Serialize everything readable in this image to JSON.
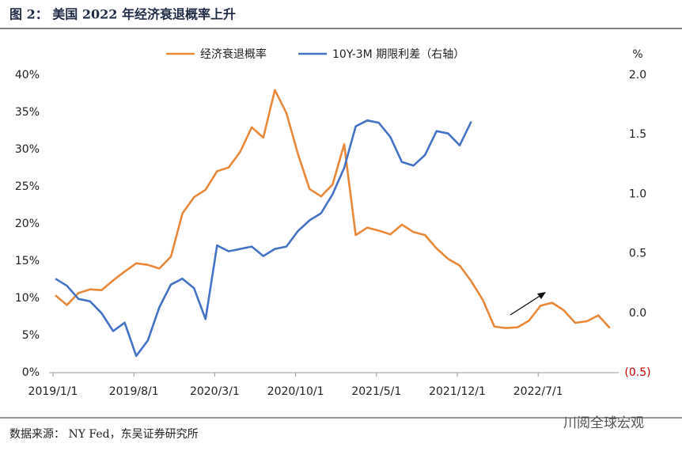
{
  "chart_data": {
    "type": "line",
    "title": "图 2：  美国 2022 年经济衰退概率上升",
    "source": "数据来源：  NY Fed，东吴证券研究所",
    "watermark": "川阅全球宏观",
    "categories": [
      "2019/1/1",
      null,
      null,
      null,
      null,
      null,
      null,
      "2019/8/1",
      null,
      null,
      null,
      null,
      null,
      null,
      "2020/3/1",
      null,
      null,
      null,
      null,
      null,
      null,
      "2020/10/1",
      null,
      null,
      null,
      null,
      null,
      null,
      "2021/5/1",
      null,
      null,
      null,
      null,
      null,
      null,
      "2021/12/1",
      null,
      null,
      null,
      null,
      null,
      null,
      "2022/7/1",
      null,
      null,
      null,
      null,
      null,
      null
    ],
    "series": [
      {
        "name": "经济衰退概率",
        "color": "#e8883a",
        "values": [
          10.4,
          9.1,
          10.7,
          11.2,
          11.1,
          12.4,
          13.6,
          14.7,
          14.5,
          14.0,
          15.6,
          21.4,
          23.6,
          24.6,
          27.1,
          27.6,
          29.7,
          33.0,
          31.6,
          38.0,
          34.9,
          29.4,
          24.7,
          23.7,
          25.3,
          30.7,
          18.5,
          19.5,
          19.1,
          18.6,
          19.9,
          18.9,
          18.5,
          16.7,
          15.3,
          14.4,
          12.3,
          9.8,
          6.2,
          6.0,
          6.1,
          7.0,
          9.0,
          9.4,
          8.4,
          6.7,
          6.9,
          7.7,
          6.0
        ]
      },
      {
        "name": "10Y-3M 期限利差（右轴）",
        "color": "#4472c4",
        "axis": "y2",
        "values": [
          0.29,
          0.23,
          0.12,
          0.1,
          0.0,
          -0.15,
          -0.08,
          -0.36,
          -0.23,
          0.05,
          0.24,
          0.29,
          0.21,
          -0.05,
          0.57,
          0.52,
          0.54,
          0.56,
          0.48,
          0.54,
          0.56,
          0.69,
          0.78,
          0.84,
          1.0,
          1.22,
          1.57,
          1.62,
          1.6,
          1.48,
          1.27,
          1.24,
          1.33,
          1.53,
          1.51,
          1.41,
          1.61,
          null,
          null,
          null,
          null,
          null,
          null,
          null,
          null,
          null,
          null,
          null,
          null
        ]
      }
    ],
    "ylim": [
      0,
      40
    ],
    "yticks": [
      {
        "value": 0,
        "label": "0%"
      },
      {
        "value": 5,
        "label": "5%"
      },
      {
        "value": 10,
        "label": "10%"
      },
      {
        "value": 15,
        "label": "15%"
      },
      {
        "value": 20,
        "label": "20%"
      },
      {
        "value": 25,
        "label": "25%"
      },
      {
        "value": 30,
        "label": "30%"
      },
      {
        "value": 35,
        "label": "35%"
      },
      {
        "value": 40,
        "label": "40%"
      }
    ],
    "y2lim": [
      -0.5,
      2.0
    ],
    "y2ticks": [
      {
        "value": -0.5,
        "label": "(0.5)"
      },
      {
        "value": 0,
        "label": "0.0"
      },
      {
        "value": 0.5,
        "label": "0.5"
      },
      {
        "value": 1.0,
        "label": "1.0"
      },
      {
        "value": 1.5,
        "label": "1.5"
      },
      {
        "value": 2.0,
        "label": "2.0"
      }
    ],
    "y2_unit": "%",
    "y2ticks_negative_color": "#c00000",
    "legend": "top"
  }
}
